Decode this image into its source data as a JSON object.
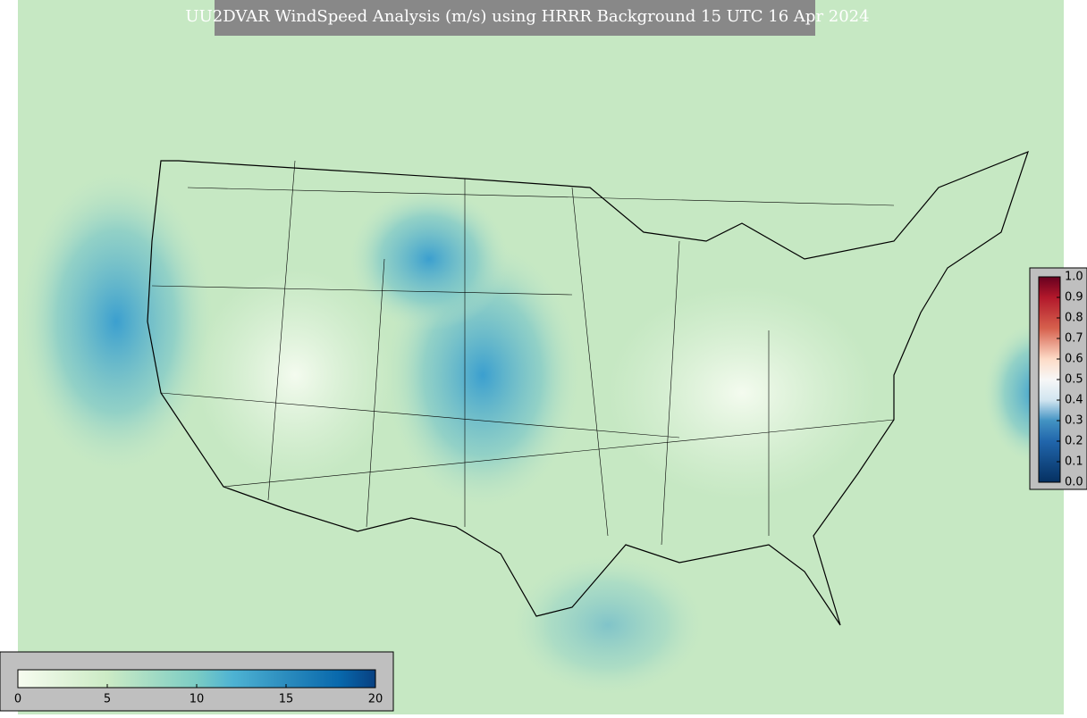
{
  "title": "UU2DVAR WindSpeed Analysis (m/s) using HRRR Background 15 UTC 16 Apr 2024",
  "windspeed_colorbar": {
    "lim": [
      0,
      20
    ],
    "ticks": [
      0,
      5,
      10,
      15,
      20
    ]
  },
  "ratio_colorbar": {
    "lim": [
      0,
      1
    ],
    "ticks": [
      {
        "value": 0,
        "label": "0.0"
      },
      {
        "value": 0.1,
        "label": "0.1"
      },
      {
        "value": 0.2,
        "label": "0.2"
      },
      {
        "value": 0.3,
        "label": "0.3"
      },
      {
        "value": 0.4,
        "label": "0.4"
      },
      {
        "value": 0.5,
        "label": "0.5"
      },
      {
        "value": 0.6,
        "label": "0.6"
      },
      {
        "value": 0.7,
        "label": "0.7"
      },
      {
        "value": 0.8,
        "label": "0.8"
      },
      {
        "value": 0.9,
        "label": "0.9"
      },
      {
        "value": 1,
        "label": "1.0"
      }
    ]
  }
}
